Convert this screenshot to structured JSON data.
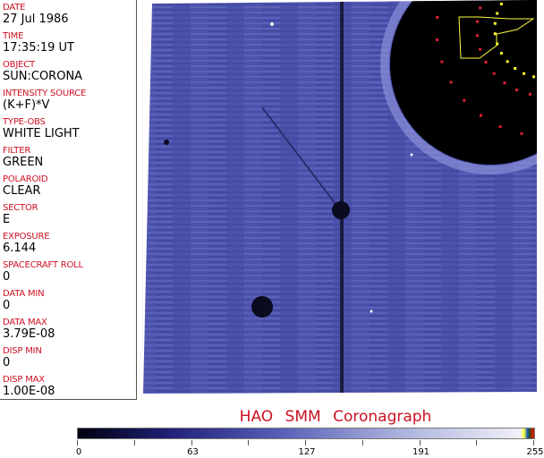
{
  "header_fields": [
    {
      "label": "DATE",
      "value": "27 Jul 1986"
    },
    {
      "label": "TIME",
      "value": "17:35:19 UT"
    },
    {
      "label": "OBJECT",
      "value": "SUN:CORONA"
    },
    {
      "label": "INTENSITY SOURCE",
      "value": "(K+F)*V"
    },
    {
      "label": "TYPE-OBS",
      "value": "WHITE LIGHT"
    },
    {
      "label": "FILTER",
      "value": "GREEN"
    },
    {
      "label": "POLAROID",
      "value": "CLEAR"
    },
    {
      "label": "SECTOR",
      "value": "E"
    },
    {
      "label": "EXPOSURE",
      "value": "6.144"
    },
    {
      "label": "SPACECRAFT ROLL",
      "value": "0"
    },
    {
      "label": "DATA MIN",
      "value": "0"
    },
    {
      "label": "DATA MAX",
      "value": "3.79E-08"
    },
    {
      "label": "DISP MIN",
      "value": "0"
    },
    {
      "label": "DISP MAX",
      "value": "1.00E-08"
    }
  ],
  "title": "HAO  SMM  Coronagraph",
  "colorbar": {
    "min": 0,
    "max": 255,
    "tick_labels": [
      "0",
      "63",
      "127",
      "191",
      "255"
    ],
    "colors": {
      "low": "#000010",
      "mid": "#5a60b8",
      "high": "#f0f0f8"
    }
  },
  "colors": {
    "label": "#cc1122",
    "image_field": "#4a50a8",
    "marker_red": "#e02030",
    "marker_yellow": "#ffff30"
  }
}
